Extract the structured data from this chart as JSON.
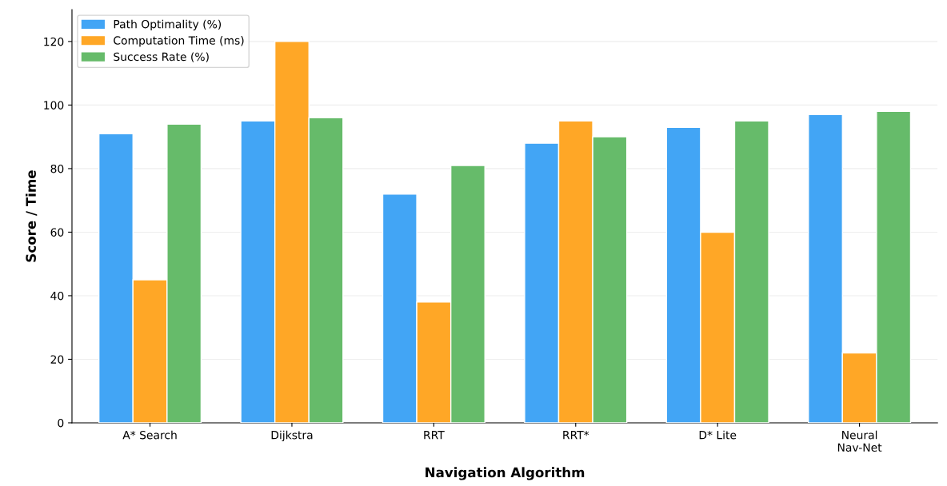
{
  "chart_data": {
    "type": "bar",
    "xlabel": "Navigation Algorithm",
    "ylabel": "Score / Time",
    "categories": [
      "A* Search",
      "Dijkstra",
      "RRT",
      "RRT*",
      "D* Lite",
      "Neural\nNav-Net"
    ],
    "series": [
      {
        "name": "Path Optimality (%)",
        "color": "#42a5f5",
        "values": [
          91,
          95,
          72,
          88,
          93,
          97
        ]
      },
      {
        "name": "Computation Time (ms)",
        "color": "#ffa726",
        "values": [
          45,
          120,
          38,
          95,
          60,
          22
        ]
      },
      {
        "name": "Success Rate (%)",
        "color": "#66bb6a",
        "values": [
          94,
          96,
          81,
          90,
          95,
          98
        ]
      }
    ],
    "ylim": [
      0,
      130
    ],
    "yticks": [
      0,
      20,
      40,
      60,
      80,
      100,
      120
    ],
    "grid": "y",
    "legend": "top left"
  }
}
